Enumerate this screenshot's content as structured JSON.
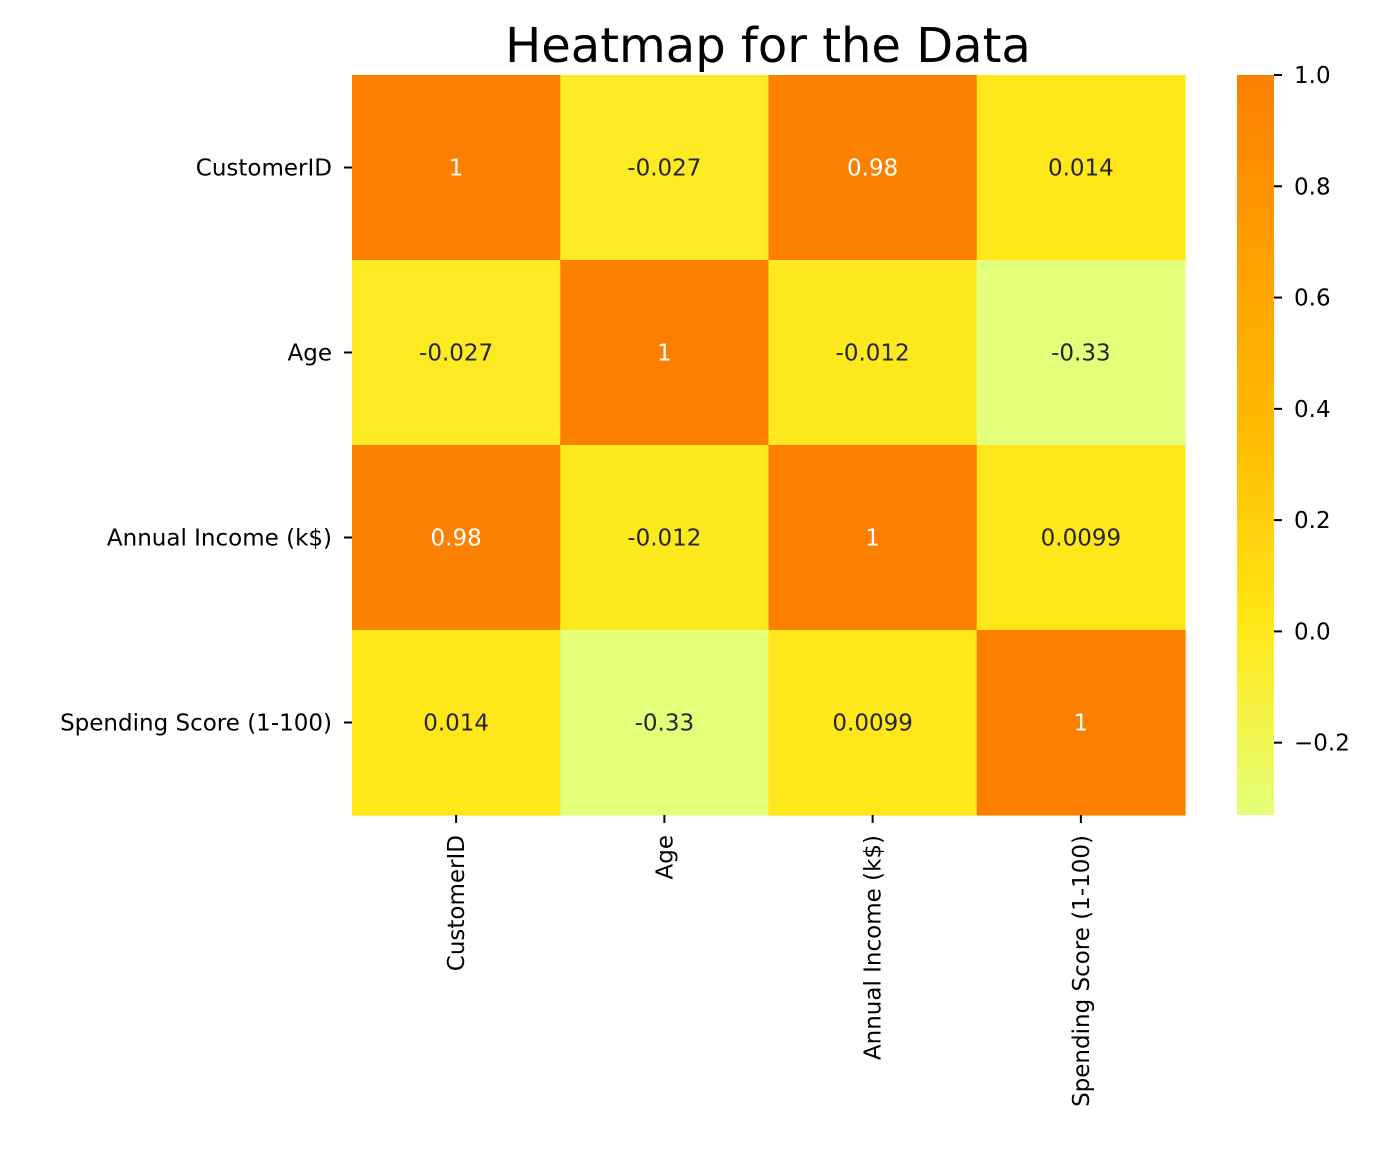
{
  "chart_data": {
    "type": "heatmap",
    "title": "Heatmap for the Data",
    "row_labels": [
      "CustomerID",
      "Age",
      "Annual Income (k$)",
      "Spending Score (1-100)"
    ],
    "col_labels": [
      "CustomerID",
      "Age",
      "Annual Income (k$)",
      "Spending Score (1-100)"
    ],
    "values": [
      [
        1,
        -0.027,
        0.98,
        0.014
      ],
      [
        -0.027,
        1,
        -0.012,
        -0.33
      ],
      [
        0.98,
        -0.012,
        1,
        0.0099
      ],
      [
        0.014,
        -0.33,
        0.0099,
        1
      ]
    ],
    "annotations": [
      [
        "1",
        "-0.027",
        "0.98",
        "0.014"
      ],
      [
        "-0.027",
        "1",
        "-0.012",
        "-0.33"
      ],
      [
        "0.98",
        "-0.012",
        "1",
        "0.0099"
      ],
      [
        "0.014",
        "-0.33",
        "0.0099",
        "1"
      ]
    ],
    "colormap": "Wistia",
    "colorbar": {
      "vmin": -0.33,
      "vmax": 1.0,
      "ticks": [
        1.0,
        0.8,
        0.6,
        0.4,
        0.2,
        0.0,
        -0.2
      ],
      "tick_labels": [
        "1.0",
        "0.8",
        "0.6",
        "0.4",
        "0.2",
        "0.0",
        "−0.2"
      ],
      "colors": [
        "#e4ff7a",
        "#ffe81a",
        "#ffbd00",
        "#ffa000",
        "#fc7f00"
      ]
    },
    "legend_position": "right",
    "grid": false
  }
}
